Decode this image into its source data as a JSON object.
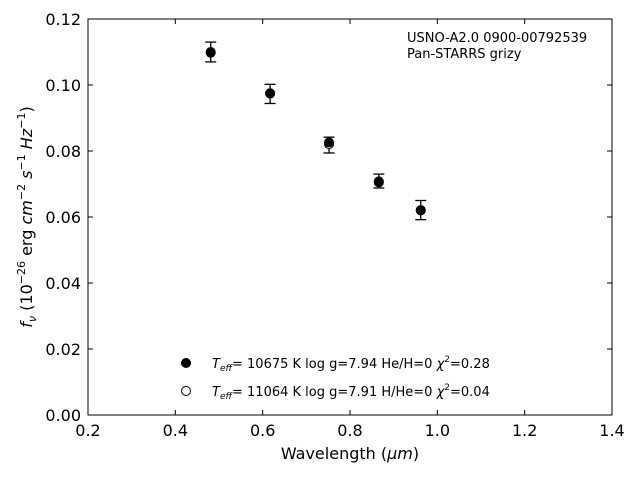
{
  "chart_data": {
    "type": "scatter",
    "title": "",
    "xlabel": {
      "main": "Wavelength (",
      "unit": "μm",
      "close": ")"
    },
    "ylabel": {
      "f": "f",
      "nu": "ν",
      "open": " (10",
      "exp": "−26",
      "erg": " erg ",
      "cm": "cm",
      "cmexp": "−2",
      "s": " s",
      "sexp": "−1",
      "hz": " Hz",
      "hzexp": "−1",
      "close": ")"
    },
    "xlim": [
      0.2,
      1.4
    ],
    "ylim": [
      0.0,
      0.12
    ],
    "xticks": [
      0.2,
      0.4,
      0.6,
      0.8,
      1.0,
      1.2,
      1.4
    ],
    "xtick_labels": [
      "0.2",
      "0.4",
      "0.6",
      "0.8",
      "1.0",
      "1.2",
      "1.4"
    ],
    "yticks": [
      0.0,
      0.02,
      0.04,
      0.06,
      0.08,
      0.1,
      0.12
    ],
    "ytick_labels": [
      "0.00",
      "0.02",
      "0.04",
      "0.06",
      "0.08",
      "0.10",
      "0.12"
    ],
    "annotations": [
      "USNO-A2.0 0900-00792539",
      "Pan-STARRS grizy"
    ],
    "observed": {
      "x": [
        0.481,
        0.617,
        0.752,
        0.866,
        0.962
      ],
      "y": [
        0.11,
        0.0973,
        0.0818,
        0.0709,
        0.0621
      ],
      "yerr": [
        0.003,
        0.0029,
        0.0024,
        0.0021,
        0.0029
      ]
    },
    "series": [
      {
        "marker": "filled",
        "legend": {
          "t": "T",
          "sub": "eff",
          "rest": "= 10675 K  log g=7.94  He/H=0  ",
          "chi": "χ",
          "sup": "2",
          "val": "=0.28"
        },
        "x": [
          0.481,
          0.617,
          0.752,
          0.866,
          0.962
        ],
        "y": [
          0.1098,
          0.0975,
          0.0826,
          0.0705,
          0.062
        ]
      },
      {
        "marker": "open",
        "legend": {
          "t": "T",
          "sub": "eff",
          "rest": "= 11064 K  log g=7.91  H/He=0  ",
          "chi": "χ",
          "sup": "2",
          "val": "=0.04"
        },
        "x": [
          0.481,
          0.617,
          0.752,
          0.866,
          0.962
        ],
        "y": [
          0.11,
          0.0974,
          0.0821,
          0.0708,
          0.0621
        ]
      }
    ]
  }
}
